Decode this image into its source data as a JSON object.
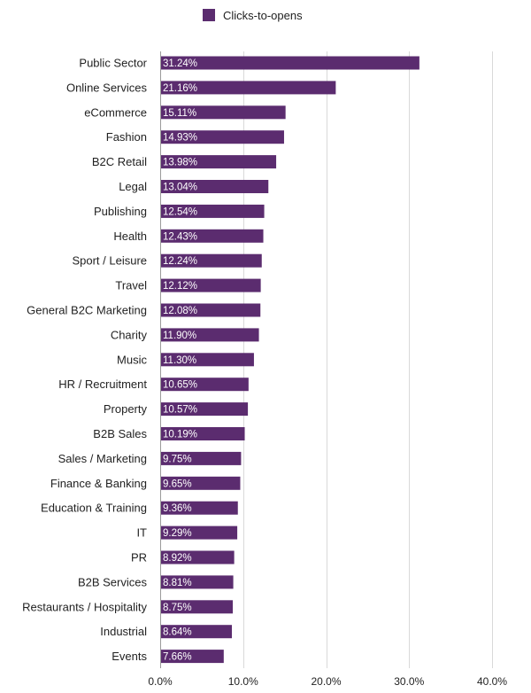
{
  "chart_data": {
    "type": "bar",
    "orientation": "horizontal",
    "legend": {
      "label": "Clicks-to-opens",
      "position": "top-center"
    },
    "series": [
      {
        "name": "Clicks-to-opens",
        "color": "#5b2c6f",
        "values": [
          31.24,
          21.16,
          15.11,
          14.93,
          13.98,
          13.04,
          12.54,
          12.43,
          12.24,
          12.12,
          12.08,
          11.9,
          11.3,
          10.65,
          10.57,
          10.19,
          9.75,
          9.65,
          9.36,
          9.29,
          8.92,
          8.81,
          8.75,
          8.64,
          7.66
        ]
      }
    ],
    "categories": [
      "Public Sector",
      "Online Services",
      "eCommerce",
      "Fashion",
      "B2C Retail",
      "Legal",
      "Publishing",
      "Health",
      "Sport / Leisure",
      "Travel",
      "General B2C Marketing",
      "Charity",
      "Music",
      "HR / Recruitment",
      "Property",
      "B2B Sales",
      "Sales / Marketing",
      "Finance & Banking",
      "Education & Training",
      "IT",
      "PR",
      "B2B Services",
      "Restaurants / Hospitality",
      "Industrial",
      "Events"
    ],
    "data_labels": [
      "31.24%",
      "21.16%",
      "15.11%",
      "14.93%",
      "13.98%",
      "13.04%",
      "12.54%",
      "12.43%",
      "12.24%",
      "12.12%",
      "12.08%",
      "11.90%",
      "11.30%",
      "10.65%",
      "10.57%",
      "10.19%",
      "9.75%",
      "9.65%",
      "9.36%",
      "9.29%",
      "8.92%",
      "8.81%",
      "8.75%",
      "8.64%",
      "7.66%"
    ],
    "x_ticks": [
      0,
      10,
      20,
      30,
      40
    ],
    "x_tick_labels": [
      "0.0%",
      "10.0%",
      "20.0%",
      "30.0%",
      "40.0%"
    ],
    "xlim": [
      0,
      40
    ],
    "grid": "vertical",
    "title": "",
    "xlabel": "",
    "ylabel": ""
  }
}
